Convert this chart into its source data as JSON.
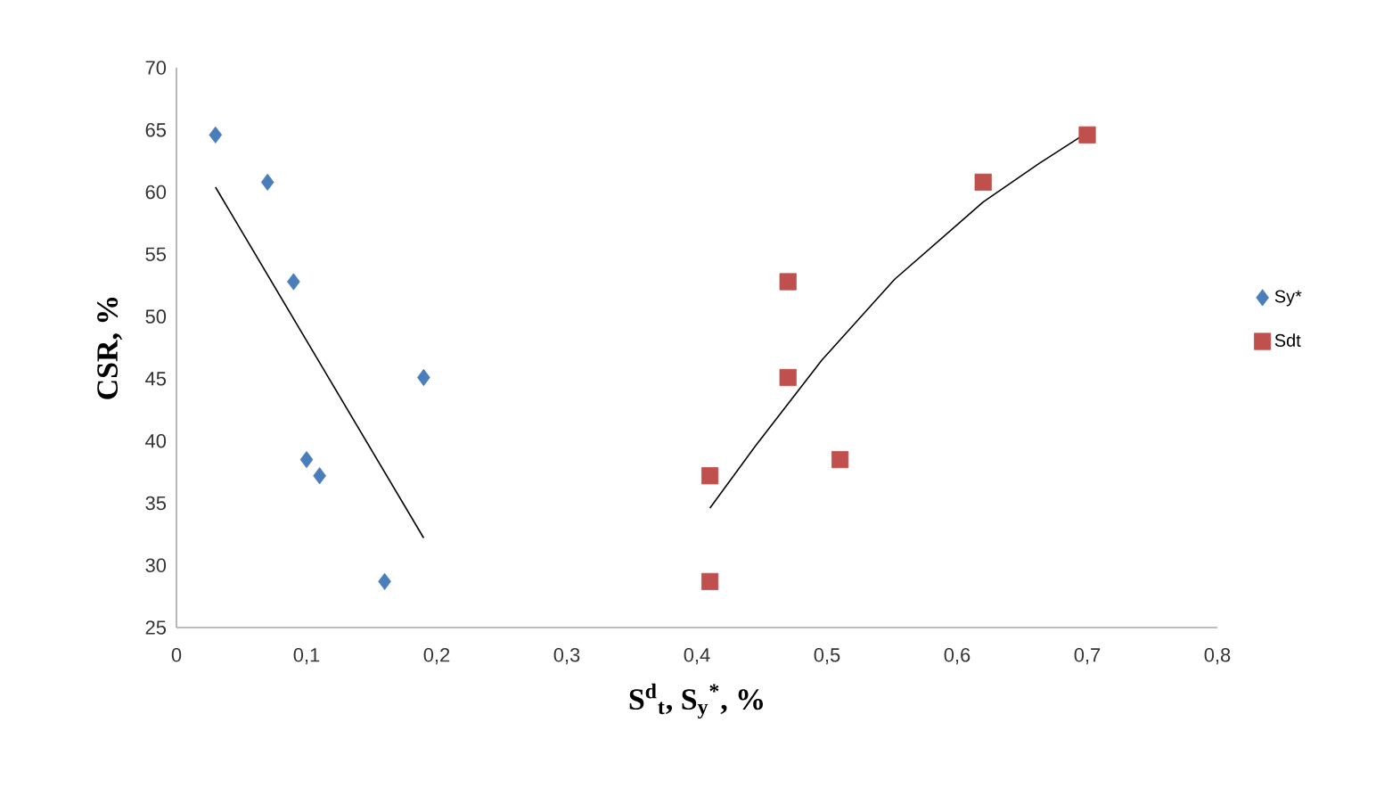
{
  "chart_data": {
    "type": "scatter",
    "xlabel": "S$^{d}$$_{t}$, S$_{y}$$^{*}$, %",
    "ylabel": "CSR, %",
    "xlim": [
      0,
      0.8
    ],
    "ylim": [
      25,
      70
    ],
    "xticks": [
      0,
      {
        "value": 0.1,
        "label": "0,1"
      },
      {
        "value": 0.2,
        "label": "0,2"
      },
      {
        "value": 0.3,
        "label": "0,3"
      },
      {
        "value": 0.4,
        "label": "0,4"
      },
      {
        "value": 0.5,
        "label": "0,5"
      },
      {
        "value": 0.6,
        "label": "0,6"
      },
      {
        "value": 0.7,
        "label": "0,7"
      },
      {
        "value": 0.8,
        "label": "0,8"
      }
    ],
    "yticks": [
      25,
      30,
      35,
      40,
      45,
      50,
      55,
      60,
      65,
      70
    ],
    "legend": "right",
    "grid": false,
    "series": [
      {
        "name": "Sy*",
        "marker": "diamond",
        "color": "#4a7ebb",
        "x": [
          0.03,
          0.07,
          0.09,
          0.19,
          0.1,
          0.11,
          0.16
        ],
        "values": [
          64.6,
          60.8,
          52.8,
          45.1,
          38.5,
          37.2,
          28.7
        ]
      },
      {
        "name": "Sdt",
        "marker": "square",
        "color": "#c0504d",
        "x": [
          0.7,
          0.62,
          0.47,
          0.47,
          0.51,
          0.41,
          0.41
        ],
        "values": [
          64.6,
          60.8,
          52.8,
          45.1,
          38.5,
          37.2,
          28.7
        ]
      },
      {
        "type": "line",
        "marker": "none",
        "color": "#000000",
        "x": [
          0.03,
          0.19
        ],
        "values": [
          60.4,
          32.2
        ]
      },
      {
        "type": "line",
        "marker": "none",
        "color": "#000000",
        "x": [
          0.41,
          0.445,
          0.496,
          0.552,
          0.62,
          0.663,
          0.7
        ],
        "values": [
          34.6,
          39.6,
          46.5,
          53.0,
          59.2,
          62.3,
          64.8
        ]
      }
    ]
  }
}
